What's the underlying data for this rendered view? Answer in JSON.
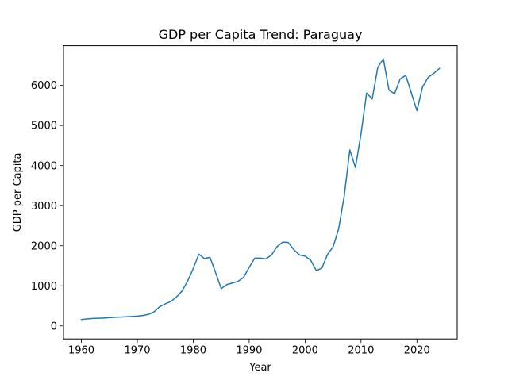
{
  "chart_data": {
    "type": "line",
    "title": "GDP per Capita Trend: Paraguay",
    "xlabel": "Year",
    "ylabel": "GDP per Capita",
    "xlim": [
      1956.8,
      2027.2
    ],
    "ylim": [
      -325,
      6990
    ],
    "xticks": [
      1960,
      1970,
      1980,
      1990,
      2000,
      2010,
      2020
    ],
    "yticks": [
      0,
      1000,
      2000,
      3000,
      4000,
      5000,
      6000
    ],
    "grid": false,
    "line_color": "#1f77b4",
    "series": [
      {
        "x": [
          1960,
          1961,
          1962,
          1963,
          1964,
          1965,
          1966,
          1967,
          1968,
          1969,
          1970,
          1971,
          1972,
          1973,
          1974,
          1975,
          1976,
          1977,
          1978,
          1979,
          1980,
          1981,
          1982,
          1983,
          1984,
          1985,
          1986,
          1987,
          1988,
          1989,
          1990,
          1991,
          1992,
          1993,
          1994,
          1995,
          1996,
          1997,
          1998,
          1999,
          2000,
          2001,
          2002,
          2003,
          2004,
          2005,
          2006,
          2007,
          2008,
          2009,
          2010,
          2011,
          2012,
          2013,
          2014,
          2015,
          2016,
          2017,
          2018,
          2019,
          2020,
          2021,
          2022,
          2023,
          2024
        ],
        "values": [
          160,
          175,
          185,
          190,
          195,
          205,
          215,
          220,
          228,
          235,
          245,
          260,
          290,
          350,
          480,
          550,
          610,
          720,
          870,
          1120,
          1430,
          1790,
          1680,
          1710,
          1330,
          930,
          1030,
          1070,
          1110,
          1210,
          1460,
          1690,
          1690,
          1670,
          1770,
          1980,
          2090,
          2080,
          1900,
          1770,
          1740,
          1640,
          1380,
          1440,
          1780,
          1970,
          2420,
          3240,
          4390,
          3950,
          4790,
          5810,
          5660,
          6450,
          6660,
          5880,
          5790,
          6160,
          6250,
          5810,
          5370,
          5960,
          6200,
          6300,
          6420
        ]
      }
    ]
  }
}
